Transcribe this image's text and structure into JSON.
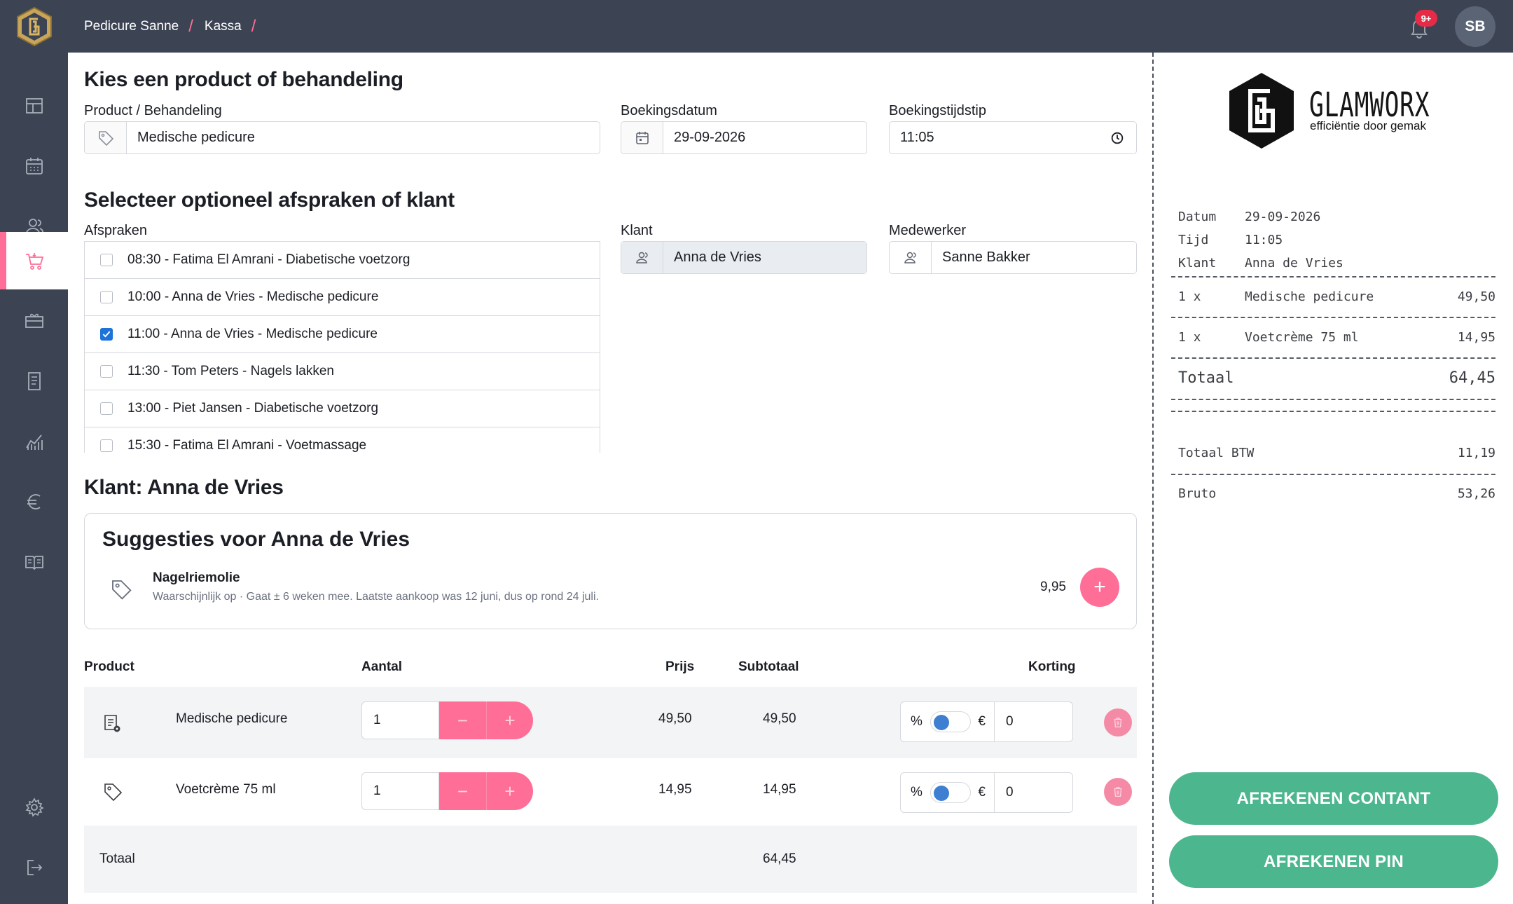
{
  "header": {
    "breadcrumb": [
      "Pedicure Sanne",
      "Kassa"
    ],
    "notifications_badge": "9+",
    "avatar_initials": "SB"
  },
  "sidebar": {
    "items": [
      {
        "icon": "dashboard-icon"
      },
      {
        "icon": "calendar-icon"
      },
      {
        "icon": "clients-icon"
      },
      {
        "icon": "cart-icon",
        "active": true
      },
      {
        "icon": "gift-card-icon"
      },
      {
        "icon": "invoice-icon"
      },
      {
        "icon": "stats-icon"
      },
      {
        "icon": "euro-icon"
      },
      {
        "icon": "book-icon"
      },
      {
        "icon": "settings-icon"
      },
      {
        "icon": "logout-icon"
      }
    ]
  },
  "product_section": {
    "title": "Kies een product of behandeling",
    "product_label": "Product / Behandeling",
    "product_value": "Medische pedicure",
    "date_label": "Boekingsdatum",
    "date_value": "29-09-2026",
    "time_label": "Boekingstijdstip",
    "time_value": "11:05"
  },
  "appointment_section": {
    "title": "Selecteer optioneel afspraken of klant",
    "appointments_label": "Afspraken",
    "appointments": [
      {
        "label": "08:30 - Fatima El Amrani - Diabetische voetzorg",
        "checked": false
      },
      {
        "label": "10:00 - Anna de Vries - Medische pedicure",
        "checked": false
      },
      {
        "label": "11:00 - Anna de Vries - Medische pedicure",
        "checked": true
      },
      {
        "label": "11:30 - Tom Peters - Nagels lakken",
        "checked": false
      },
      {
        "label": "13:00 - Piet Jansen - Diabetische voetzorg",
        "checked": false
      },
      {
        "label": "15:30 - Fatima El Amrani - Voetmassage",
        "checked": false
      }
    ],
    "client_label": "Klant",
    "client_value": "Anna de Vries",
    "employee_label": "Medewerker",
    "employee_value": "Sanne Bakker"
  },
  "client_heading": "Klant: Anna de Vries",
  "suggestions": {
    "title": "Suggesties voor Anna de Vries",
    "item_name": "Nagelriemolie",
    "item_description": "Waarschijnlijk op · Gaat ± 6 weken mee. Laatste aankoop was 12 juni, dus op rond 24 juli.",
    "item_price": "9,95",
    "add_symbol": "+"
  },
  "cart": {
    "headers": {
      "product": "Product",
      "quantity": "Aantal",
      "price": "Prijs",
      "subtotal": "Subtotaal",
      "discount": "Korting"
    },
    "rows": [
      {
        "icon": "treatment-icon",
        "name": "Medische pedicure",
        "quantity": "1",
        "price": "49,50",
        "subtotal": "49,50",
        "discount_value": "0"
      },
      {
        "icon": "tag-icon",
        "name": "Voetcrème 75 ml",
        "quantity": "1",
        "price": "14,95",
        "subtotal": "14,95",
        "discount_value": "0"
      }
    ],
    "minus_symbol": "−",
    "plus_symbol": "+",
    "percent_symbol": "%",
    "euro_symbol": "€",
    "total_label": "Totaal",
    "total_value": "64,45"
  },
  "receipt": {
    "brand_name": "GLAMWORX",
    "brand_tagline": "efficiëntie door gemak",
    "date_label": "Datum",
    "date_value": "29-09-2026",
    "time_label": "Tijd",
    "time_value": "11:05",
    "client_label": "Klant",
    "client_value": "Anna de Vries",
    "lines": [
      {
        "qty": "1 x",
        "name": "Medische pedicure",
        "amount": "49,50"
      },
      {
        "qty": "1 x",
        "name": "Voetcrème 75 ml",
        "amount": "14,95"
      }
    ],
    "total_label": "Totaal",
    "total_value": "64,45",
    "vat_label": "Totaal BTW",
    "vat_value": "11,19",
    "gross_label": "Bruto",
    "gross_value": "53,26",
    "pay_cash_label": "AFREKENEN CONTANT",
    "pay_card_label": "AFREKENEN PIN"
  },
  "colors": {
    "sidebar": "#3c4453",
    "accent_pink": "#ff6e97",
    "pay_green": "#4cb68f",
    "checkbox_blue": "#1e73d8"
  }
}
